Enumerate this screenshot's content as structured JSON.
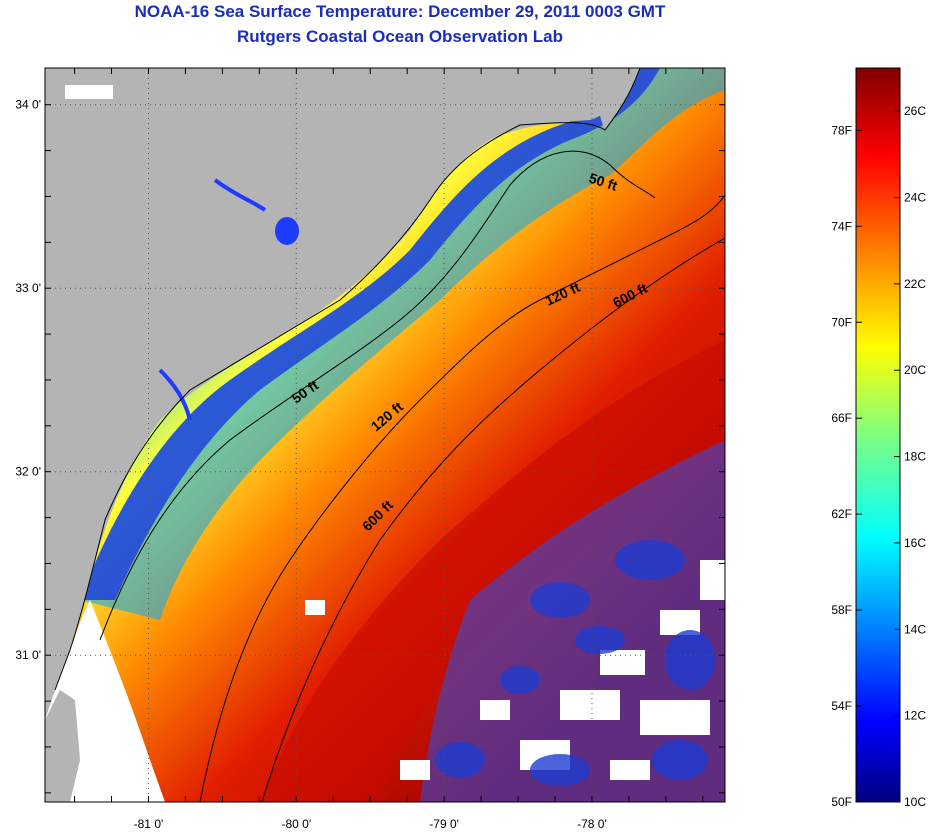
{
  "title": "NOAA-16 Sea Surface Temperature:  December 29, 2011 0003 GMT",
  "subtitle": "Rutgers Coastal Ocean Observation Lab",
  "map": {
    "lon_range": [
      -81.7,
      -77.1
    ],
    "lat_range": [
      30.2,
      34.2
    ],
    "lon_ticks": [
      {
        "value": -81,
        "label": "-81 0'"
      },
      {
        "value": -80,
        "label": "-80 0'"
      },
      {
        "value": -79,
        "label": "-79 0'"
      },
      {
        "value": -78,
        "label": "-78 0'"
      }
    ],
    "lat_ticks": [
      {
        "value": 34,
        "label": "34 0'"
      },
      {
        "value": 33,
        "label": "33 0'"
      },
      {
        "value": 32,
        "label": "32 0'"
      },
      {
        "value": 31,
        "label": "31 0'"
      }
    ],
    "grid": "dotted",
    "contours": [
      {
        "label": "50 ft"
      },
      {
        "label": "50 ft"
      },
      {
        "label": "120 ft"
      },
      {
        "label": "120 ft"
      },
      {
        "label": "600 ft"
      },
      {
        "label": "600 ft"
      }
    ],
    "colors": {
      "land": "#b4b4b4",
      "cloud": "#ffffff"
    }
  },
  "colorbar": {
    "fahrenheit_labels": [
      "78F",
      "74F",
      "70F",
      "66F",
      "62F",
      "58F",
      "54F",
      "50F"
    ],
    "celsius_labels": [
      "26C",
      "24C",
      "22C",
      "20C",
      "18C",
      "16C",
      "14C",
      "12C",
      "10C"
    ],
    "range_celsius": [
      10,
      27
    ]
  }
}
